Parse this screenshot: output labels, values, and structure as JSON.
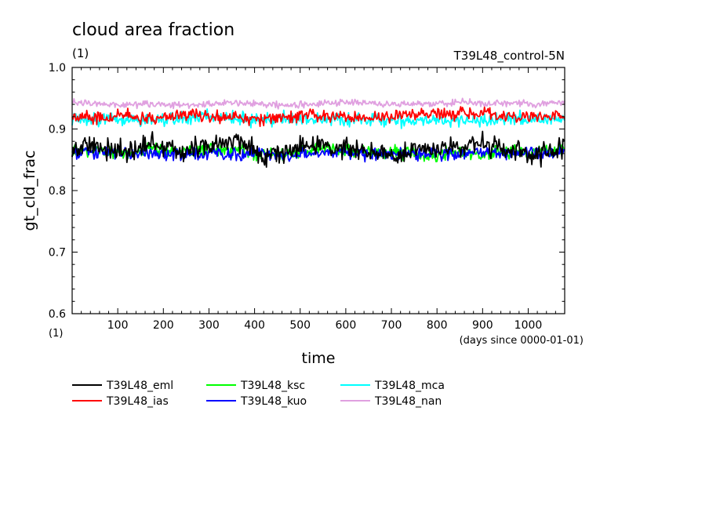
{
  "chart_data": {
    "type": "line",
    "title": "cloud area fraction",
    "units": "(1)",
    "run_label": "T39L48_control-5N",
    "xlabel": "time",
    "x_units": "(days since 0000-01-01)",
    "ylabel": "gt_cld_frac",
    "y_units": "(1)",
    "xlim": [
      0,
      1080
    ],
    "ylim": [
      0.6,
      1.0
    ],
    "x_ticks": [
      100,
      200,
      300,
      400,
      500,
      600,
      700,
      800,
      900,
      1000
    ],
    "y_ticks": [
      0.6,
      0.7,
      0.8,
      0.9,
      1.0
    ],
    "y_tick_labels": [
      "0.6",
      "0.7",
      "0.8",
      "0.9",
      "1.0"
    ],
    "grid": false,
    "legend_position": "bottom",
    "series": [
      {
        "name": "T39L48_eml",
        "color": "#000000",
        "x": [
          0,
          60,
          120,
          180,
          240,
          300,
          360,
          420,
          480,
          540,
          600,
          660,
          720,
          780,
          840,
          900,
          960,
          1020,
          1080
        ],
        "y": [
          0.868,
          0.873,
          0.86,
          0.878,
          0.863,
          0.872,
          0.88,
          0.858,
          0.866,
          0.874,
          0.87,
          0.865,
          0.855,
          0.868,
          0.872,
          0.876,
          0.862,
          0.857,
          0.875
        ]
      },
      {
        "name": "T39L48_ias",
        "color": "#ff0000",
        "x": [
          0,
          60,
          120,
          180,
          240,
          300,
          360,
          420,
          480,
          540,
          600,
          660,
          720,
          780,
          840,
          900,
          960,
          1020,
          1080
        ],
        "y": [
          0.92,
          0.918,
          0.922,
          0.917,
          0.925,
          0.921,
          0.918,
          0.916,
          0.92,
          0.923,
          0.919,
          0.918,
          0.921,
          0.924,
          0.922,
          0.925,
          0.921,
          0.919,
          0.92
        ]
      },
      {
        "name": "T39L48_ksc",
        "color": "#00ff00",
        "x": [
          0,
          60,
          120,
          180,
          240,
          300,
          360,
          420,
          480,
          540,
          600,
          660,
          720,
          780,
          840,
          900,
          960,
          1020,
          1080
        ],
        "y": [
          0.866,
          0.865,
          0.858,
          0.868,
          0.862,
          0.866,
          0.864,
          0.86,
          0.861,
          0.867,
          0.866,
          0.862,
          0.861,
          0.858,
          0.862,
          0.86,
          0.863,
          0.86,
          0.866
        ]
      },
      {
        "name": "T39L48_kuo",
        "color": "#0000ff",
        "x": [
          0,
          60,
          120,
          180,
          240,
          300,
          360,
          420,
          480,
          540,
          600,
          660,
          720,
          780,
          840,
          900,
          960,
          1020,
          1080
        ],
        "y": [
          0.86,
          0.862,
          0.858,
          0.86,
          0.857,
          0.861,
          0.859,
          0.86,
          0.858,
          0.862,
          0.864,
          0.86,
          0.859,
          0.861,
          0.858,
          0.86,
          0.859,
          0.861,
          0.86
        ]
      },
      {
        "name": "T39L48_mca",
        "color": "#00ffff",
        "x": [
          0,
          60,
          120,
          180,
          240,
          300,
          360,
          420,
          480,
          540,
          600,
          660,
          720,
          780,
          840,
          900,
          960,
          1020,
          1080
        ],
        "y": [
          0.914,
          0.916,
          0.913,
          0.917,
          0.915,
          0.918,
          0.917,
          0.914,
          0.916,
          0.915,
          0.917,
          0.916,
          0.914,
          0.913,
          0.915,
          0.914,
          0.916,
          0.917,
          0.916
        ]
      },
      {
        "name": "T39L48_nan",
        "color": "#e0a0e0",
        "x": [
          0,
          60,
          120,
          180,
          240,
          300,
          360,
          420,
          480,
          540,
          600,
          660,
          720,
          780,
          840,
          900,
          960,
          1020,
          1080
        ],
        "y": [
          0.944,
          0.94,
          0.939,
          0.941,
          0.938,
          0.94,
          0.943,
          0.94,
          0.939,
          0.942,
          0.944,
          0.941,
          0.939,
          0.942,
          0.943,
          0.941,
          0.943,
          0.94,
          0.945
        ]
      }
    ]
  }
}
